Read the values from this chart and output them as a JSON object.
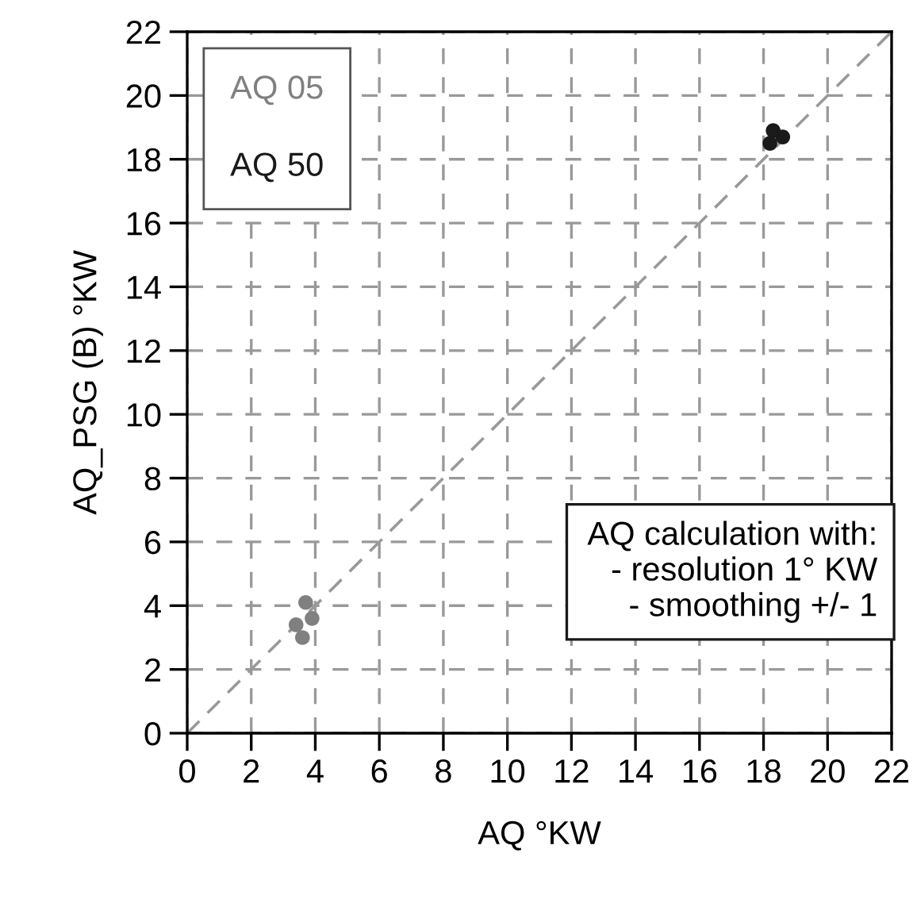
{
  "chart_data": {
    "type": "scatter",
    "xlabel": "AQ °KW",
    "ylabel": "AQ_PSG (B) °KW",
    "xlim": [
      0,
      22
    ],
    "ylim": [
      0,
      22
    ],
    "xticks": [
      0,
      2,
      4,
      6,
      8,
      10,
      12,
      14,
      16,
      18,
      20,
      22
    ],
    "yticks": [
      0,
      2,
      4,
      6,
      8,
      10,
      12,
      14,
      16,
      18,
      20,
      22
    ],
    "grid": true,
    "legend": "top left",
    "marker": "circle",
    "series": [
      {
        "name": "AQ 05",
        "color": "#808080",
        "x": [
          3.7,
          3.4,
          3.9,
          3.6
        ],
        "values": [
          4.1,
          3.4,
          3.6,
          3.0
        ]
      },
      {
        "name": "AQ 50",
        "color": "#1a1a1a",
        "x": [
          18.2,
          18.6,
          18.3
        ],
        "values": [
          18.5,
          18.7,
          18.9
        ]
      },
      {
        "type": "line",
        "color": "#999999",
        "line_style": "dashed",
        "marker": "none",
        "x": [
          0,
          22
        ],
        "values": [
          0,
          22
        ]
      }
    ],
    "annotations": [
      "AQ calculation with:\n   - resolution 1° KW\n   - smoothing +/- 1"
    ]
  }
}
